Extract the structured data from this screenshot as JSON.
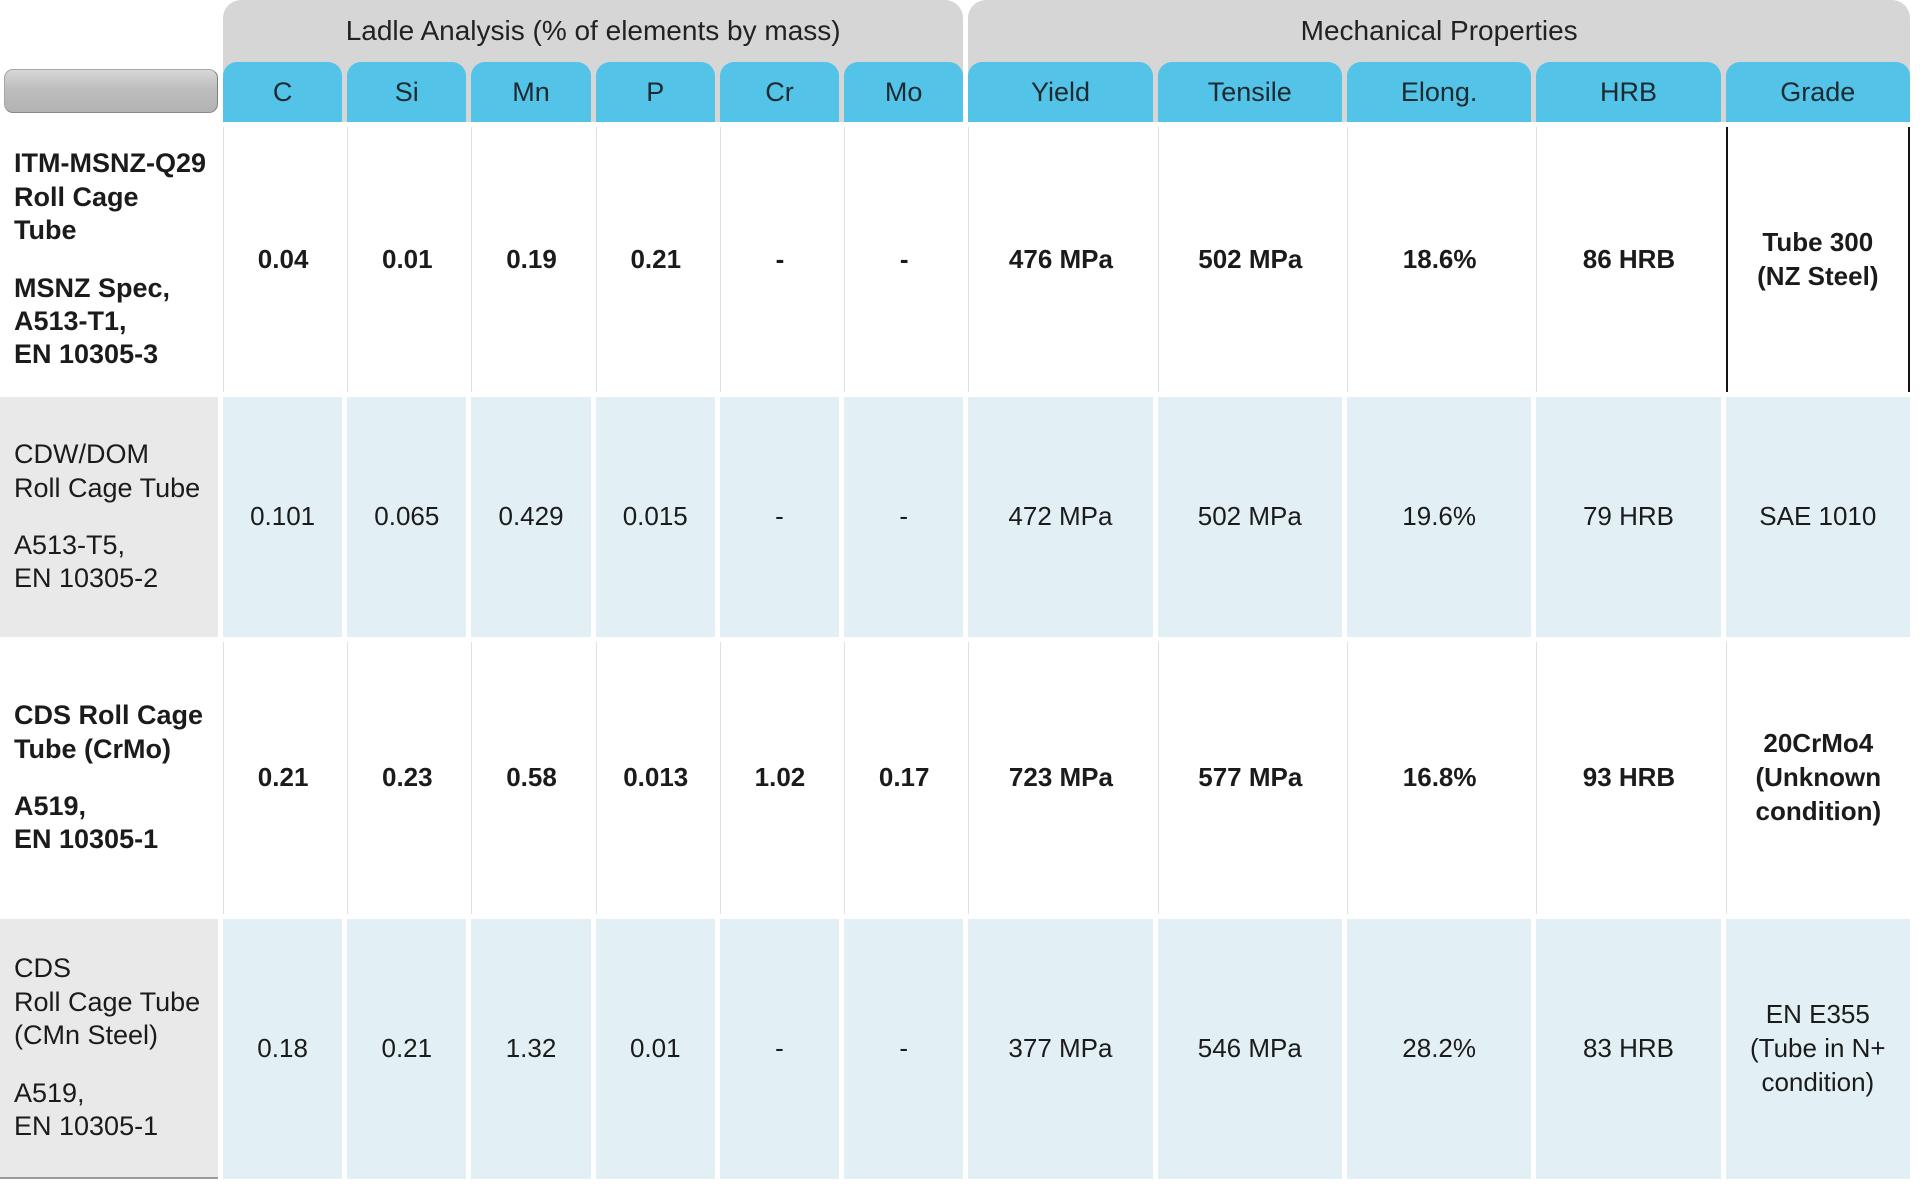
{
  "table": {
    "groups": [
      {
        "label": "Ladle Analysis (% of elements by mass)"
      },
      {
        "label": "Mechanical Properties"
      }
    ],
    "columns": [
      "C",
      "Si",
      "Mn",
      "P",
      "Cr",
      "Mo",
      "Yield",
      "Tensile",
      "Elong.",
      "HRB",
      "Grade"
    ],
    "rows": [
      {
        "name": "ITM-MSNZ-Q29\nRoll Cage Tube",
        "spec": "MSNZ Spec,\nA513-T1,\nEN 10305-3",
        "bold": true,
        "tinted": false,
        "grade_highlighted": true,
        "values": [
          "0.04",
          "0.01",
          "0.19",
          "0.21",
          "-",
          "-",
          "476 MPa",
          "502 MPa",
          "18.6%",
          "86 HRB",
          "Tube 300\n(NZ Steel)"
        ]
      },
      {
        "name": "CDW/DOM\nRoll Cage Tube",
        "spec": "A513-T5,\nEN 10305-2",
        "bold": false,
        "tinted": true,
        "grade_highlighted": false,
        "values": [
          "0.101",
          "0.065",
          "0.429",
          "0.015",
          "-",
          "-",
          "472 MPa",
          "502 MPa",
          "19.6%",
          "79 HRB",
          "SAE 1010"
        ]
      },
      {
        "name": "CDS Roll Cage\nTube (CrMo)",
        "spec": "A519,\nEN 10305-1",
        "bold": true,
        "tinted": false,
        "grade_highlighted": false,
        "values": [
          "0.21",
          "0.23",
          "0.58",
          "0.013",
          "1.02",
          "0.17",
          "723 MPa",
          "577 MPa",
          "16.8%",
          "93 HRB",
          "20CrMo4\n(Unknown\ncondition)"
        ]
      },
      {
        "name": "CDS\nRoll Cage Tube\n(CMn Steel)",
        "spec": "A519,\nEN 10305-1",
        "bold": false,
        "tinted": true,
        "grade_highlighted": false,
        "values": [
          "0.18",
          "0.21",
          "1.32",
          "0.01",
          "-",
          "-",
          "377 MPa",
          "546 MPa",
          "28.2%",
          "83 HRB",
          "EN E355\n(Tube in N+\ncondition)"
        ]
      }
    ],
    "colors": {
      "header_blue": "#53c3e8",
      "group_gray": "#d6d6d6",
      "row_tint_blue": "#e2eff5",
      "row_tint_gray": "#e9e9e9",
      "highlight_border": "#141414"
    }
  }
}
